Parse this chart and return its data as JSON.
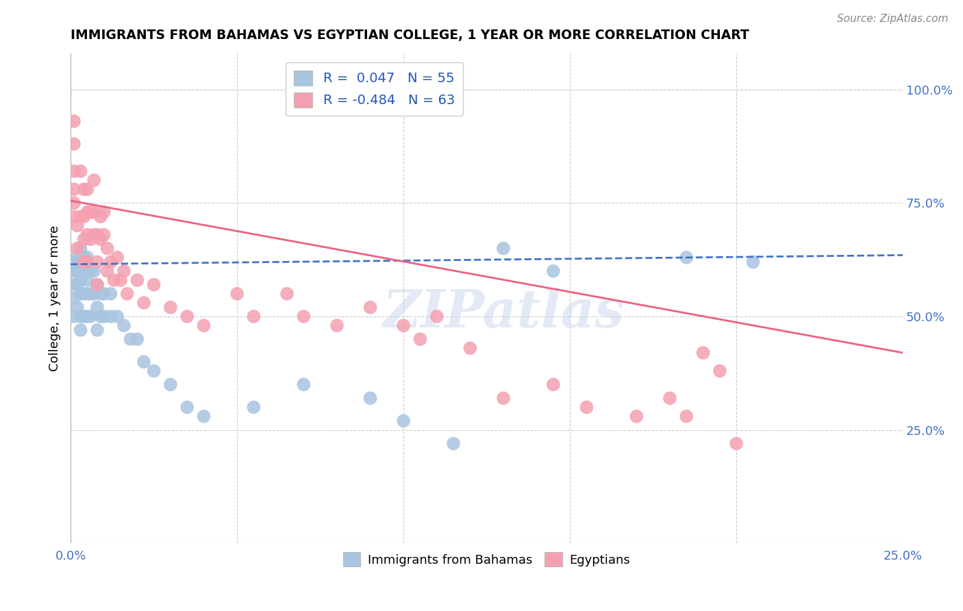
{
  "title": "IMMIGRANTS FROM BAHAMAS VS EGYPTIAN COLLEGE, 1 YEAR OR MORE CORRELATION CHART",
  "source": "Source: ZipAtlas.com",
  "ylabel": "College, 1 year or more",
  "xlim": [
    0.0,
    0.25
  ],
  "ylim": [
    0.0,
    1.05
  ],
  "bahamas_R": 0.047,
  "bahamas_N": 55,
  "egyptian_R": -0.484,
  "egyptian_N": 63,
  "bahamas_color": "#a8c4e0",
  "egyptian_color": "#f4a0b0",
  "bahamas_line_color": "#4472c4",
  "egyptian_line_color": "#f06080",
  "watermark": "ZIPatlas",
  "legend_label_bahamas": "Immigrants from Bahamas",
  "legend_label_egyptians": "Egyptians",
  "bahamas_line_y0": 0.615,
  "bahamas_line_y1": 0.635,
  "egyptian_line_y0": 0.755,
  "egyptian_line_y1": 0.42,
  "bahamas_x": [
    0.001,
    0.001,
    0.001,
    0.001,
    0.001,
    0.002,
    0.002,
    0.002,
    0.002,
    0.003,
    0.003,
    0.003,
    0.003,
    0.003,
    0.003,
    0.004,
    0.004,
    0.004,
    0.004,
    0.005,
    0.005,
    0.005,
    0.005,
    0.006,
    0.006,
    0.006,
    0.007,
    0.007,
    0.008,
    0.008,
    0.008,
    0.009,
    0.009,
    0.01,
    0.01,
    0.012,
    0.012,
    0.014,
    0.016,
    0.018,
    0.02,
    0.022,
    0.025,
    0.03,
    0.035,
    0.04,
    0.055,
    0.07,
    0.09,
    0.1,
    0.115,
    0.13,
    0.145,
    0.185,
    0.205
  ],
  "bahamas_y": [
    0.62,
    0.6,
    0.57,
    0.54,
    0.5,
    0.63,
    0.6,
    0.57,
    0.52,
    0.65,
    0.62,
    0.58,
    0.55,
    0.5,
    0.47,
    0.63,
    0.6,
    0.55,
    0.5,
    0.63,
    0.58,
    0.55,
    0.5,
    0.6,
    0.55,
    0.5,
    0.6,
    0.55,
    0.57,
    0.52,
    0.47,
    0.55,
    0.5,
    0.55,
    0.5,
    0.55,
    0.5,
    0.5,
    0.48,
    0.45,
    0.45,
    0.4,
    0.38,
    0.35,
    0.3,
    0.28,
    0.3,
    0.35,
    0.32,
    0.27,
    0.22,
    0.65,
    0.6,
    0.63,
    0.62
  ],
  "egyptian_x": [
    0.001,
    0.001,
    0.001,
    0.001,
    0.001,
    0.001,
    0.002,
    0.002,
    0.003,
    0.003,
    0.004,
    0.004,
    0.004,
    0.004,
    0.005,
    0.005,
    0.005,
    0.005,
    0.006,
    0.006,
    0.007,
    0.007,
    0.007,
    0.008,
    0.008,
    0.008,
    0.009,
    0.009,
    0.01,
    0.01,
    0.011,
    0.011,
    0.012,
    0.013,
    0.014,
    0.015,
    0.016,
    0.017,
    0.02,
    0.022,
    0.025,
    0.03,
    0.035,
    0.04,
    0.05,
    0.055,
    0.065,
    0.07,
    0.08,
    0.09,
    0.1,
    0.105,
    0.11,
    0.12,
    0.13,
    0.145,
    0.155,
    0.17,
    0.18,
    0.185,
    0.19,
    0.195,
    0.2
  ],
  "egyptian_y": [
    0.72,
    0.75,
    0.78,
    0.82,
    0.88,
    0.93,
    0.7,
    0.65,
    0.82,
    0.72,
    0.78,
    0.72,
    0.67,
    0.62,
    0.78,
    0.73,
    0.68,
    0.62,
    0.73,
    0.67,
    0.8,
    0.73,
    0.68,
    0.68,
    0.62,
    0.57,
    0.72,
    0.67,
    0.73,
    0.68,
    0.65,
    0.6,
    0.62,
    0.58,
    0.63,
    0.58,
    0.6,
    0.55,
    0.58,
    0.53,
    0.57,
    0.52,
    0.5,
    0.48,
    0.55,
    0.5,
    0.55,
    0.5,
    0.48,
    0.52,
    0.48,
    0.45,
    0.5,
    0.43,
    0.32,
    0.35,
    0.3,
    0.28,
    0.32,
    0.28,
    0.42,
    0.38,
    0.22
  ]
}
